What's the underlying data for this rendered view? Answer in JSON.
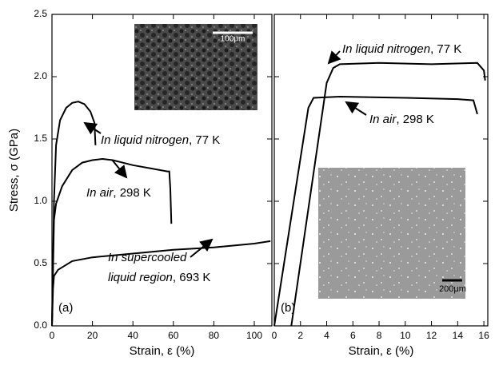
{
  "chart_data": [
    {
      "type": "line",
      "panel_label": "(a)",
      "xlabel": "Strain, ε (%)",
      "ylabel": "Stress, σ (GPa)",
      "xlim": [
        0,
        108.7
      ],
      "ylim": [
        0,
        2.5
      ],
      "xticks": [
        0,
        20,
        40,
        60,
        80,
        100
      ],
      "yticks": [
        {
          "value": 0,
          "label": "0.0"
        },
        0.5,
        {
          "value": 1,
          "label": "1.0"
        },
        1.5,
        {
          "value": 2,
          "label": "2.0"
        },
        2.5
      ],
      "color": "#000000",
      "inset_scale": "100μm",
      "series": [
        {
          "x": [
            0,
            1,
            2,
            4,
            7,
            10,
            13,
            16,
            19,
            21,
            21.5
          ],
          "y": [
            0,
            1.0,
            1.45,
            1.65,
            1.75,
            1.79,
            1.8,
            1.78,
            1.72,
            1.63,
            1.45
          ]
        },
        {
          "x": [
            0,
            1,
            2,
            5,
            10,
            15,
            20,
            25,
            30,
            40,
            50,
            57,
            58,
            58.5,
            59
          ],
          "y": [
            0,
            0.85,
            0.98,
            1.12,
            1.25,
            1.31,
            1.33,
            1.34,
            1.33,
            1.29,
            1.26,
            1.24,
            1.24,
            1.1,
            0.82
          ]
        },
        {
          "x": [
            0,
            0.5,
            1,
            3,
            10,
            20,
            40,
            60,
            80,
            100,
            108
          ],
          "y": [
            0,
            0.3,
            0.4,
            0.45,
            0.52,
            0.55,
            0.58,
            0.61,
            0.63,
            0.66,
            0.68
          ]
        }
      ],
      "annotations": [
        {
          "lines": [
            {
              "italic": "In liquid nitrogen",
              "text": ", 77 K"
            }
          ]
        },
        {
          "lines": [
            {
              "italic": "In air",
              "text": ", 298 K"
            }
          ]
        },
        {
          "lines": [
            {
              "italic": "In supercooled"
            },
            {
              "italic": "liquid region",
              "text": ", 693 K"
            }
          ]
        }
      ]
    },
    {
      "type": "line",
      "panel_label": "(b)",
      "xlabel": "Strain, ε (%)",
      "xlim": [
        0,
        16.3
      ],
      "ylim": [
        0,
        2.5
      ],
      "xticks": [
        0,
        2,
        4,
        6,
        8,
        10,
        12,
        14,
        16
      ],
      "color": "#000000",
      "inset_scale": "200μm",
      "series": [
        {
          "x": [
            1.3,
            4,
            4.5,
            5,
            8,
            12,
            15.5,
            16,
            16.1
          ],
          "y": [
            0,
            1.95,
            2.07,
            2.1,
            2.11,
            2.1,
            2.11,
            2.05,
            1.97
          ]
        },
        {
          "x": [
            0,
            2.6,
            3,
            5,
            10,
            14,
            15.2,
            15.5
          ],
          "y": [
            0,
            1.75,
            1.83,
            1.84,
            1.83,
            1.82,
            1.81,
            1.7
          ]
        }
      ],
      "annotations": [
        {
          "lines": [
            {
              "italic": "In liquid nitrogen",
              "text": ", 77 K"
            }
          ]
        },
        {
          "lines": [
            {
              "italic": "In air",
              "text": ", 298 K"
            }
          ]
        }
      ]
    }
  ]
}
